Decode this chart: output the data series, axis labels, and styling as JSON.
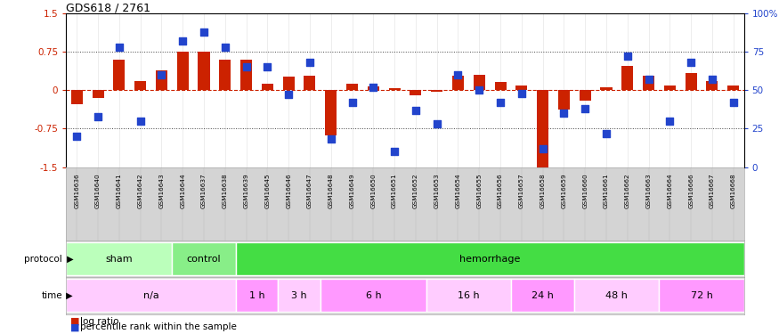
{
  "title": "GDS618 / 2761",
  "samples": [
    "GSM16636",
    "GSM16640",
    "GSM16641",
    "GSM16642",
    "GSM16643",
    "GSM16644",
    "GSM16637",
    "GSM16638",
    "GSM16639",
    "GSM16645",
    "GSM16646",
    "GSM16647",
    "GSM16648",
    "GSM16649",
    "GSM16650",
    "GSM16651",
    "GSM16652",
    "GSM16653",
    "GSM16654",
    "GSM16655",
    "GSM16656",
    "GSM16657",
    "GSM16658",
    "GSM16659",
    "GSM16660",
    "GSM16661",
    "GSM16662",
    "GSM16663",
    "GSM16664",
    "GSM16666",
    "GSM16667",
    "GSM16668"
  ],
  "log_ratio": [
    -0.28,
    -0.15,
    0.6,
    0.18,
    0.38,
    0.75,
    0.75,
    0.6,
    0.6,
    0.12,
    0.27,
    0.28,
    -0.88,
    0.12,
    0.07,
    0.04,
    -0.1,
    -0.03,
    0.28,
    0.3,
    0.16,
    0.1,
    -1.55,
    -0.38,
    -0.2,
    0.05,
    0.48,
    0.28,
    0.1,
    0.33,
    0.18,
    0.1
  ],
  "percentile": [
    20,
    33,
    78,
    30,
    60,
    82,
    88,
    78,
    65,
    65,
    47,
    68,
    18,
    42,
    52,
    10,
    37,
    28,
    60,
    50,
    42,
    48,
    12,
    35,
    38,
    22,
    72,
    57,
    30,
    68,
    57,
    42
  ],
  "protocol_groups": [
    {
      "label": "sham",
      "start": 0,
      "end": 5,
      "color": "#bbffbb"
    },
    {
      "label": "control",
      "start": 5,
      "end": 8,
      "color": "#88ee88"
    },
    {
      "label": "hemorrhage",
      "start": 8,
      "end": 32,
      "color": "#44dd44"
    }
  ],
  "time_groups": [
    {
      "label": "n/a",
      "start": 0,
      "end": 8,
      "color": "#ffccff"
    },
    {
      "label": "1 h",
      "start": 8,
      "end": 10,
      "color": "#ff99ff"
    },
    {
      "label": "3 h",
      "start": 10,
      "end": 12,
      "color": "#ffccff"
    },
    {
      "label": "6 h",
      "start": 12,
      "end": 17,
      "color": "#ff99ff"
    },
    {
      "label": "16 h",
      "start": 17,
      "end": 21,
      "color": "#ffccff"
    },
    {
      "label": "24 h",
      "start": 21,
      "end": 24,
      "color": "#ff99ff"
    },
    {
      "label": "48 h",
      "start": 24,
      "end": 28,
      "color": "#ffccff"
    },
    {
      "label": "72 h",
      "start": 28,
      "end": 32,
      "color": "#ff99ff"
    }
  ],
  "ylim": [
    -1.5,
    1.5
  ],
  "bar_color": "#cc2200",
  "dot_color": "#2244cc",
  "bg_color": "#ffffff",
  "bar_width": 0.55,
  "dot_size": 28,
  "label_bg": "#d4d4d4"
}
